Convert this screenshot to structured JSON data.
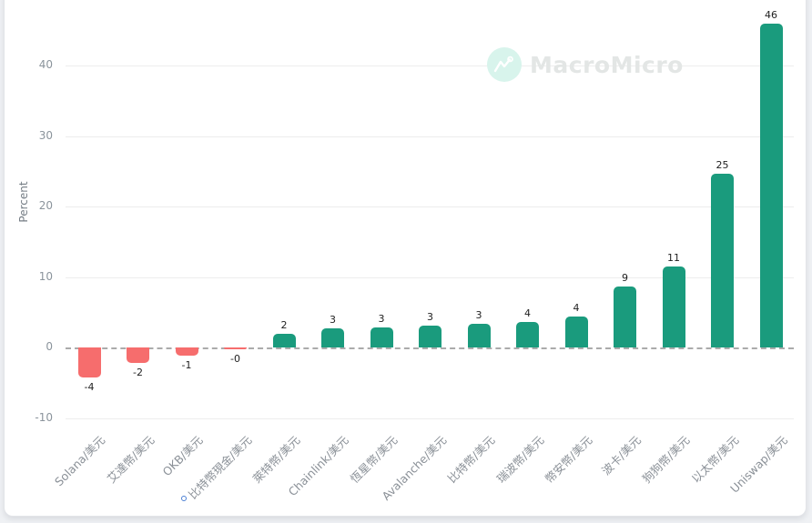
{
  "watermark": {
    "brand": "MacroMicro",
    "circle_color": "#d8f4ec",
    "text_color": "#e3e6e5"
  },
  "chart_data": {
    "type": "bar",
    "title": "",
    "xlabel": "",
    "ylabel": "Percent",
    "categories": [
      "Solana/美元",
      "艾達幣/美元",
      "OKB/美元",
      "比特幣現金/美元",
      "萊特幣/美元",
      "Chainlink/美元",
      "恆星幣/美元",
      "Avalanche/美元",
      "比特幣/美元",
      "瑞波幣/美元",
      "幣安幣/美元",
      "波卡/美元",
      "狗狗幣/美元",
      "以太幣/美元",
      "Uniswap/美元"
    ],
    "values": [
      -4.3,
      -2.2,
      -1.2,
      -0.3,
      1.9,
      2.7,
      2.9,
      3.1,
      3.3,
      3.6,
      4.4,
      8.7,
      11.5,
      24.7,
      46
    ],
    "bar_labels": [
      "-4",
      "-2",
      "-1",
      "-0",
      "2",
      "3",
      "3",
      "3",
      "3",
      "4",
      "4",
      "9",
      "11",
      "25",
      "46"
    ],
    "yticks": [
      40,
      30,
      20,
      10,
      0,
      -10
    ],
    "ylim": [
      -13.5,
      48.5
    ],
    "grid": true,
    "zero_line": "dashed",
    "legend": "none",
    "colors": {
      "positive": "#1a9b7d",
      "negative": "#f66d6d"
    }
  }
}
